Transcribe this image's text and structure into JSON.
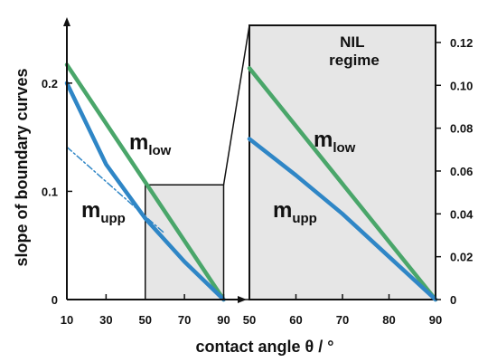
{
  "chart_data": [
    {
      "type": "line",
      "title": "",
      "xlabel": "contact angle θ / °",
      "ylabel": "slope of boundary curves",
      "xlim": [
        10,
        93
      ],
      "ylim": [
        0,
        0.24
      ],
      "xticks": [
        "10",
        "30",
        "50",
        "70",
        "90"
      ],
      "yticks": [
        "0",
        "0.1",
        "0.2"
      ],
      "grid": false,
      "series": [
        {
          "name": "m_low",
          "label_main": "m",
          "label_sub": "low",
          "color": "#4aa66a",
          "style": "solid",
          "x": [
            10,
            90
          ],
          "y": [
            0.217,
            0.0
          ]
        },
        {
          "name": "m_upp",
          "label_main": "m",
          "label_sub": "upp",
          "color": "#2f86c6",
          "style": "solid",
          "x": [
            10,
            30,
            50,
            70,
            90
          ],
          "y": [
            0.2,
            0.125,
            0.075,
            0.035,
            0.0
          ]
        },
        {
          "name": "",
          "color": "#2f86c6",
          "style": "dashdot",
          "x": [
            10,
            60
          ],
          "y": [
            0.141,
            0.061
          ]
        }
      ],
      "zoom_box": {
        "x": [
          50,
          90
        ],
        "y": [
          0,
          0.106
        ]
      }
    },
    {
      "type": "line",
      "xlabel": "",
      "ylabel": "",
      "xlim": [
        50,
        90
      ],
      "ylim": [
        0,
        0.128
      ],
      "xticks": [
        "50",
        "60",
        "70",
        "80",
        "90"
      ],
      "yticks": [
        "0",
        "0.02",
        "0.04",
        "0.06",
        "0.08",
        "0.10",
        "0.12"
      ],
      "grid": false,
      "annotation": "NIL\nregime",
      "series": [
        {
          "name": "m_low",
          "label_main": "m",
          "label_sub": "low",
          "color": "#4aa66a",
          "style": "solid",
          "x": [
            50,
            90
          ],
          "y": [
            0.108,
            0.0
          ]
        },
        {
          "name": "m_upp",
          "label_main": "m",
          "label_sub": "upp",
          "color": "#2f86c6",
          "style": "solid",
          "x": [
            50,
            60,
            70,
            80,
            90
          ],
          "y": [
            0.075,
            0.058,
            0.04,
            0.02,
            0.0
          ]
        }
      ]
    }
  ]
}
